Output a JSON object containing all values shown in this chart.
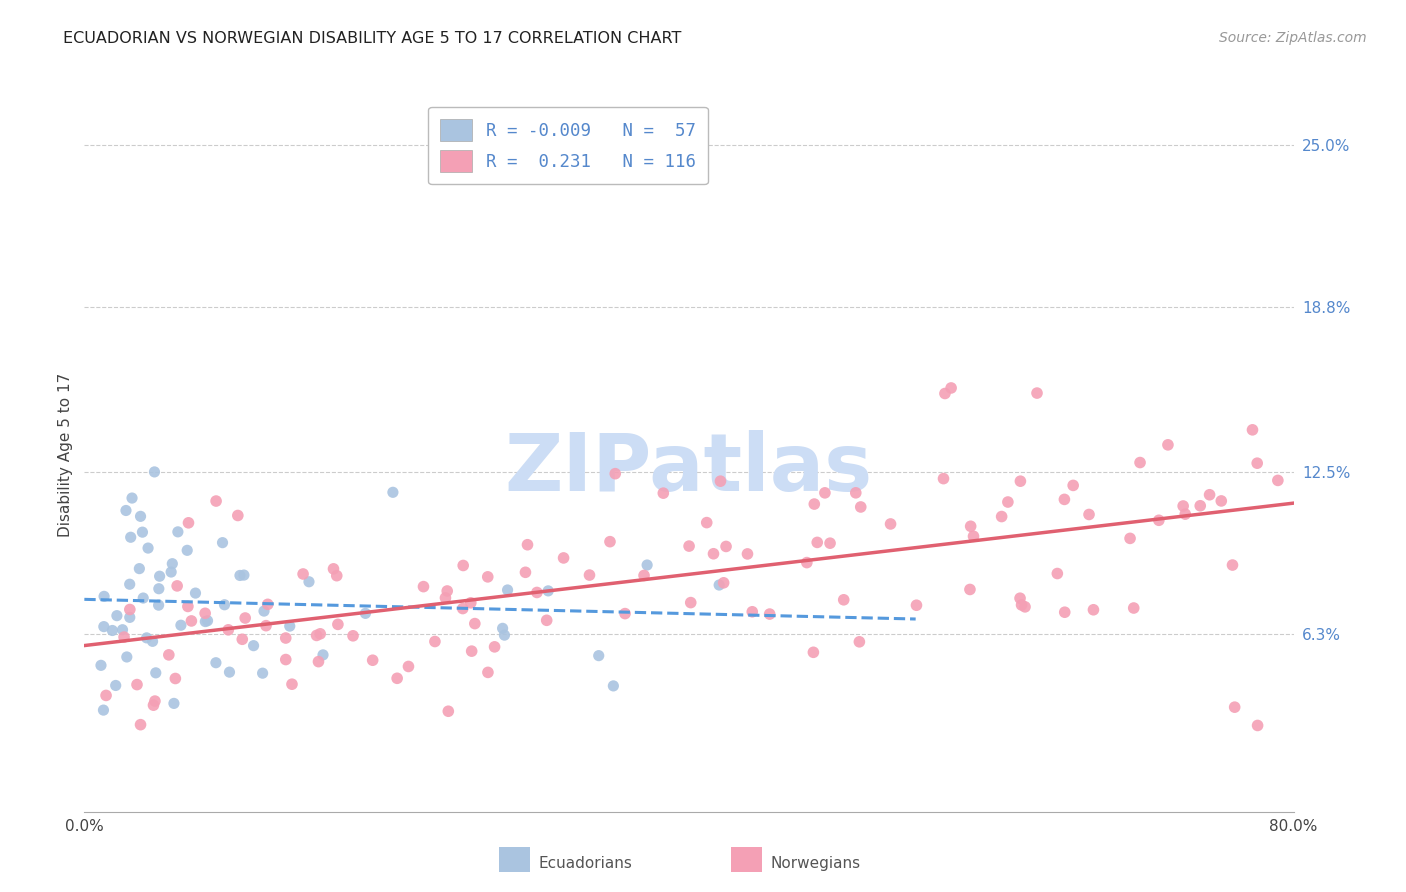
{
  "title": "ECUADORIAN VS NORWEGIAN DISABILITY AGE 5 TO 17 CORRELATION CHART",
  "source": "Source: ZipAtlas.com",
  "ylabel": "Disability Age 5 to 17",
  "yticks": [
    0.063,
    0.125,
    0.188,
    0.25
  ],
  "ytick_labels": [
    "6.3%",
    "12.5%",
    "18.8%",
    "25.0%"
  ],
  "xmin": 0.0,
  "xmax": 0.8,
  "ymin": -0.005,
  "ymax": 0.268,
  "ecuadorian_color": "#aac4e0",
  "norwegian_color": "#f4a0b5",
  "trend_blue_color": "#5599dd",
  "trend_pink_color": "#e06070",
  "watermark_text": "ZIPatlas",
  "watermark_color": "#ccddf5",
  "grid_color": "#cccccc",
  "title_color": "#222222",
  "source_color": "#999999",
  "tick_label_color": "#5588cc",
  "ylabel_color": "#444444",
  "legend_text_color": "#5588cc",
  "bottom_legend_text_color": "#555555",
  "legend_r1": "R = -0.009",
  "legend_n1": "N =  57",
  "legend_r2": "R =  0.231",
  "legend_n2": "N = 116"
}
